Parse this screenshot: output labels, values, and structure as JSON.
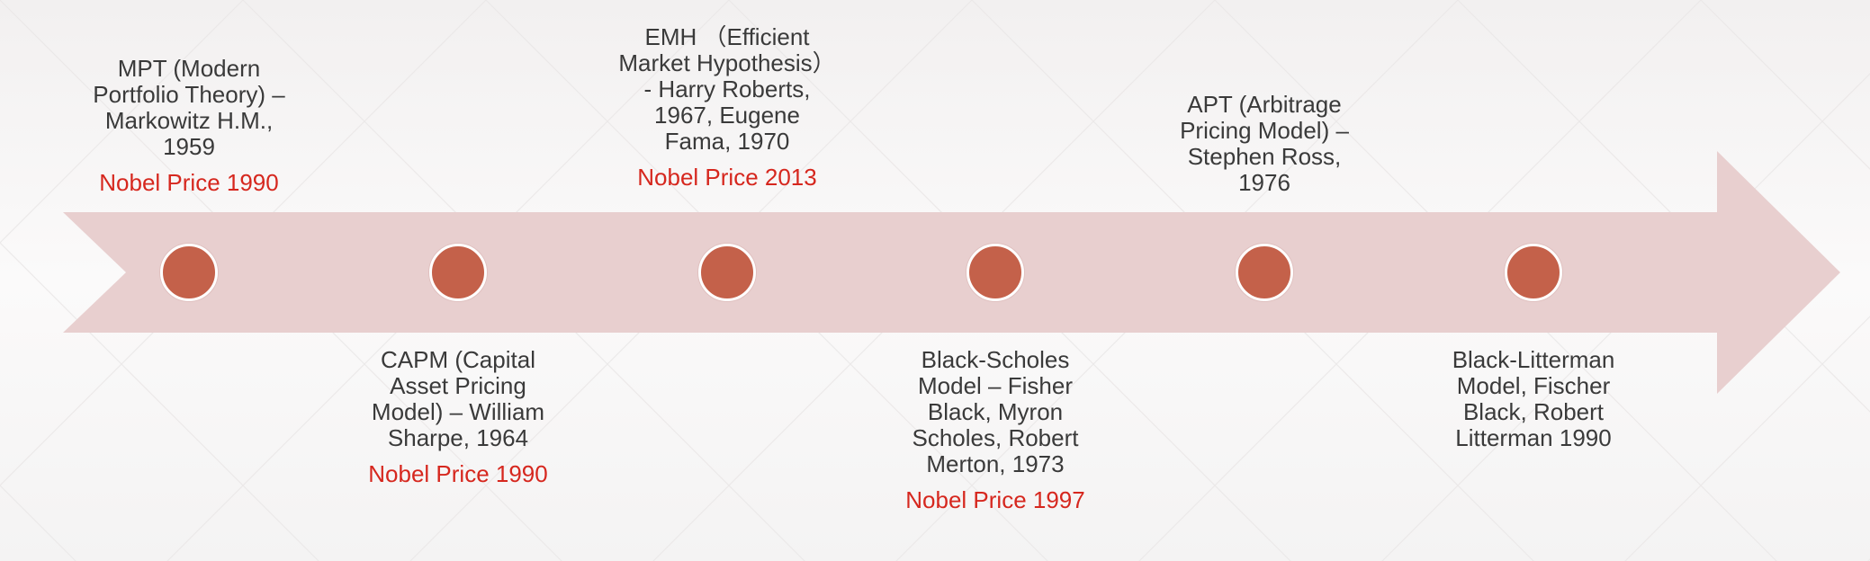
{
  "colors": {
    "arrow_fill": "#e8cfcf",
    "dot_fill": "#c4614a",
    "nobel_text": "#d6271e",
    "text": "#3a3a3a"
  },
  "events": [
    {
      "description": "MPT (Modern\nPortfolio Theory) –\nMarkowitz H.M.,\n1959",
      "nobel": "Nobel Price 1990",
      "position": "top"
    },
    {
      "description": "CAPM (Capital\nAsset Pricing\nModel) – William\nSharpe, 1964",
      "nobel": "Nobel Price 1990",
      "position": "bottom"
    },
    {
      "description": "EMH （Efficient\nMarket Hypothesis）\n- Harry Roberts,\n1967, Eugene\nFama, 1970",
      "nobel": "Nobel Price 2013",
      "position": "top"
    },
    {
      "description": "Black-Scholes\nModel – Fisher\nBlack, Myron\nScholes, Robert\nMerton, 1973",
      "nobel": "Nobel Price 1997",
      "position": "bottom"
    },
    {
      "description": "APT (Arbitrage\nPricing Model) –\nStephen Ross,\n1976",
      "nobel": "",
      "position": "top"
    },
    {
      "description": "Black-Litterman\nModel, Fischer\nBlack, Robert\nLitterman 1990",
      "nobel": "",
      "position": "bottom"
    }
  ]
}
